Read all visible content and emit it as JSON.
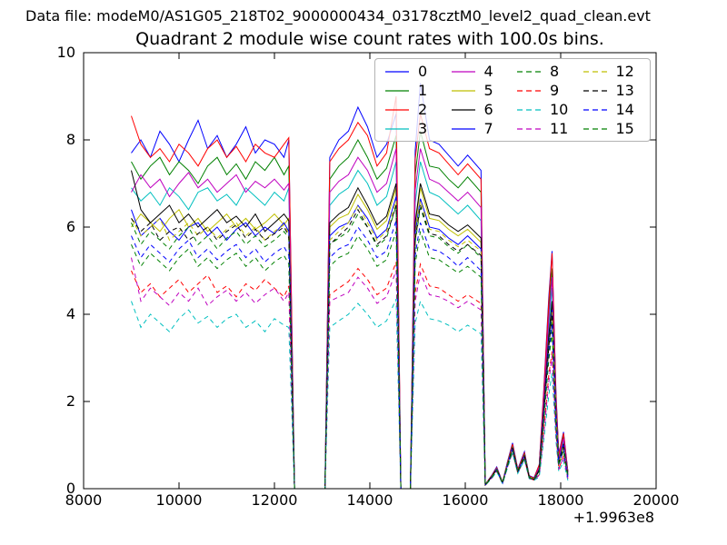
{
  "figure": {
    "data_file_label": "Data file: modeM0/AS1G05_218T02_9000000434_03178cztM0_level2_quad_clean.evt",
    "title": "Quadrant 2 module wise count rates with 100.0s bins."
  },
  "chart_data": {
    "type": "line",
    "title": "Quadrant 2 module wise count rates with 100.0s bins.",
    "xlabel": "",
    "ylabel": "",
    "xlim": [
      8000,
      20000
    ],
    "ylim": [
      0,
      10
    ],
    "x_ticks": [
      8000,
      10000,
      12000,
      14000,
      16000,
      18000,
      20000
    ],
    "y_ticks": [
      0,
      2,
      4,
      6,
      8,
      10
    ],
    "x_offset_label": "+1.9963e8",
    "grid": false,
    "legend_position": "upper right",
    "legend_columns": 4,
    "x": [
      9000,
      9200,
      9400,
      9600,
      9800,
      10000,
      10200,
      10400,
      10600,
      10800,
      11000,
      11200,
      11400,
      11600,
      11800,
      12000,
      12200,
      12300,
      12420,
      13060,
      13160,
      13350,
      13550,
      13750,
      13950,
      14150,
      14350,
      14550,
      14650,
      14850,
      14950,
      15060,
      15250,
      15450,
      15650,
      15850,
      16050,
      16330,
      16420,
      16550,
      16660,
      16780,
      16880,
      16990,
      17100,
      17240,
      17340,
      17440,
      17550,
      17650,
      17750,
      17820,
      17900,
      17960,
      18060,
      18150
    ],
    "series": [
      {
        "name": "0",
        "color": "#0000ff",
        "dashed": false,
        "values": [
          7.7,
          8.0,
          7.6,
          8.2,
          7.9,
          7.5,
          8.0,
          8.45,
          7.8,
          8.1,
          7.6,
          7.9,
          8.3,
          7.7,
          8.0,
          7.9,
          7.6,
          8.0,
          0,
          0,
          7.6,
          8.0,
          8.2,
          8.75,
          8.3,
          7.6,
          7.9,
          8.6,
          0,
          0,
          7.75,
          9.3,
          8.0,
          7.9,
          7.65,
          7.4,
          7.65,
          7.3,
          0.1,
          0.3,
          0.5,
          0.15,
          0.6,
          1.05,
          0.45,
          0.85,
          0.3,
          0.25,
          0.55,
          2.35,
          4.4,
          5.45,
          2.2,
          0.8,
          1.3,
          0.4
        ]
      },
      {
        "name": "1",
        "color": "#008000",
        "dashed": false,
        "values": [
          7.5,
          7.1,
          7.4,
          7.6,
          7.2,
          7.5,
          7.3,
          7.0,
          7.4,
          7.6,
          7.2,
          7.45,
          7.1,
          7.5,
          7.3,
          7.6,
          7.2,
          7.4,
          0,
          0,
          7.1,
          7.4,
          7.6,
          8.0,
          7.6,
          7.1,
          7.35,
          8.1,
          0,
          0,
          7.2,
          8.2,
          7.4,
          7.35,
          7.1,
          6.9,
          7.15,
          6.8,
          0.09,
          0.28,
          0.47,
          0.14,
          0.57,
          1.0,
          0.42,
          0.8,
          0.28,
          0.23,
          0.5,
          2.2,
          4.1,
          5.05,
          2.05,
          0.75,
          1.2,
          0.37
        ]
      },
      {
        "name": "2",
        "color": "#ff0000",
        "dashed": false,
        "values": [
          8.55,
          7.9,
          7.6,
          7.8,
          7.5,
          7.9,
          7.7,
          7.4,
          7.8,
          8.0,
          7.6,
          7.85,
          7.5,
          7.9,
          7.7,
          7.6,
          7.9,
          8.05,
          0,
          0,
          7.5,
          7.8,
          8.0,
          8.4,
          8.1,
          7.4,
          7.7,
          9.0,
          0,
          0,
          7.55,
          8.6,
          7.8,
          7.7,
          7.45,
          7.2,
          7.45,
          7.1,
          0.1,
          0.29,
          0.48,
          0.15,
          0.58,
          1.02,
          0.44,
          0.82,
          0.29,
          0.24,
          0.55,
          2.3,
          4.3,
          5.4,
          2.15,
          0.77,
          1.27,
          0.39
        ]
      },
      {
        "name": "3",
        "color": "#00bfbf",
        "dashed": false,
        "values": [
          6.9,
          6.6,
          6.8,
          6.5,
          6.9,
          6.7,
          6.4,
          6.8,
          6.9,
          6.6,
          6.75,
          6.5,
          6.9,
          6.7,
          6.5,
          6.8,
          6.6,
          6.9,
          0,
          0,
          6.5,
          6.75,
          6.9,
          7.3,
          7.0,
          6.5,
          6.7,
          7.5,
          0,
          0,
          6.55,
          7.5,
          6.8,
          6.7,
          6.5,
          6.3,
          6.5,
          6.15,
          0.09,
          0.27,
          0.45,
          0.14,
          0.54,
          0.95,
          0.4,
          0.77,
          0.27,
          0.22,
          0.47,
          2.0,
          3.75,
          4.6,
          1.9,
          0.67,
          1.1,
          0.34
        ]
      },
      {
        "name": "4",
        "color": "#bf00bf",
        "dashed": false,
        "values": [
          6.8,
          7.2,
          6.9,
          7.1,
          6.7,
          7.0,
          7.25,
          6.9,
          7.1,
          6.8,
          7.0,
          7.2,
          6.8,
          7.05,
          6.9,
          7.1,
          6.85,
          7.0,
          0,
          0,
          6.8,
          7.05,
          7.2,
          7.6,
          7.3,
          6.8,
          7.0,
          7.8,
          0,
          0,
          6.85,
          7.8,
          7.1,
          7.0,
          6.8,
          6.6,
          6.8,
          6.45,
          0.09,
          0.26,
          0.44,
          0.13,
          0.53,
          0.93,
          0.39,
          0.75,
          0.26,
          0.21,
          0.49,
          2.1,
          3.9,
          4.85,
          1.95,
          0.7,
          1.15,
          0.35
        ]
      },
      {
        "name": "5",
        "color": "#bfbf00",
        "dashed": false,
        "values": [
          6.0,
          6.3,
          6.1,
          5.9,
          6.2,
          6.4,
          6.0,
          6.2,
          5.9,
          6.1,
          6.3,
          6.0,
          6.2,
          5.95,
          6.1,
          6.3,
          6.05,
          6.2,
          0,
          0,
          6.0,
          6.2,
          6.3,
          6.75,
          6.4,
          5.95,
          6.15,
          6.9,
          0,
          0,
          6.0,
          6.9,
          6.2,
          6.15,
          5.95,
          5.8,
          5.95,
          5.65,
          0.09,
          0.27,
          0.46,
          0.14,
          0.55,
          0.96,
          0.41,
          0.78,
          0.27,
          0.22,
          0.43,
          1.85,
          3.45,
          4.25,
          1.7,
          0.62,
          1.0,
          0.31
        ]
      },
      {
        "name": "6",
        "color": "#000000",
        "dashed": false,
        "values": [
          7.3,
          6.4,
          6.1,
          6.3,
          6.5,
          6.1,
          6.3,
          6.0,
          6.2,
          6.4,
          6.1,
          6.25,
          6.0,
          6.3,
          5.9,
          6.1,
          6.3,
          6.15,
          0,
          0,
          6.1,
          6.3,
          6.45,
          6.9,
          6.5,
          6.05,
          6.25,
          7.0,
          0,
          0,
          6.1,
          7.0,
          6.3,
          6.25,
          6.05,
          5.9,
          6.05,
          5.75,
          0.09,
          0.27,
          0.45,
          0.14,
          0.54,
          0.95,
          0.4,
          0.77,
          0.27,
          0.22,
          0.44,
          1.9,
          3.5,
          4.3,
          1.75,
          0.63,
          1.03,
          0.31
        ]
      },
      {
        "name": "7",
        "color": "#0000ff",
        "dashed": false,
        "values": [
          6.4,
          5.8,
          6.0,
          6.2,
          5.9,
          5.7,
          6.0,
          6.1,
          5.8,
          6.0,
          5.7,
          5.95,
          6.1,
          5.8,
          6.0,
          5.85,
          6.1,
          5.9,
          0,
          0,
          5.8,
          6.0,
          6.1,
          6.5,
          6.2,
          5.75,
          5.95,
          6.7,
          0,
          0,
          5.85,
          6.65,
          6.0,
          5.95,
          5.75,
          5.6,
          5.8,
          5.5,
          0.09,
          0.26,
          0.45,
          0.13,
          0.54,
          0.94,
          0.4,
          0.76,
          0.27,
          0.21,
          0.42,
          1.8,
          3.3,
          4.1,
          1.65,
          0.6,
          1.0,
          0.3
        ]
      },
      {
        "name": "8",
        "color": "#008000",
        "dashed": true,
        "values": [
          6.1,
          5.6,
          5.9,
          5.7,
          5.5,
          5.8,
          6.0,
          5.6,
          5.8,
          5.5,
          5.75,
          5.9,
          5.6,
          5.8,
          5.55,
          5.7,
          5.9,
          5.75,
          0,
          0,
          5.6,
          5.75,
          5.9,
          6.3,
          6.0,
          5.55,
          5.75,
          6.5,
          0,
          0,
          5.65,
          6.45,
          5.8,
          5.75,
          5.55,
          5.4,
          5.6,
          5.3,
          0.09,
          0.26,
          0.43,
          0.13,
          0.51,
          0.89,
          0.38,
          0.72,
          0.26,
          0.21,
          0.4,
          1.7,
          3.2,
          3.95,
          1.6,
          0.58,
          0.95,
          0.29
        ]
      },
      {
        "name": "9",
        "color": "#ff0000",
        "dashed": true,
        "values": [
          5.0,
          4.5,
          4.7,
          4.4,
          4.6,
          4.8,
          4.5,
          4.7,
          4.9,
          4.5,
          4.65,
          4.4,
          4.7,
          4.55,
          4.8,
          4.6,
          4.4,
          4.65,
          0,
          0,
          4.45,
          4.6,
          4.75,
          5.05,
          4.8,
          4.45,
          4.6,
          5.2,
          0,
          0,
          4.5,
          5.15,
          4.65,
          4.6,
          4.45,
          4.3,
          4.45,
          4.25,
          0.08,
          0.24,
          0.4,
          0.12,
          0.48,
          0.84,
          0.36,
          0.68,
          0.24,
          0.2,
          0.32,
          1.4,
          2.6,
          3.15,
          1.3,
          0.46,
          0.76,
          0.23
        ]
      },
      {
        "name": "10",
        "color": "#00bfbf",
        "dashed": true,
        "values": [
          4.3,
          3.7,
          4.0,
          3.8,
          3.6,
          3.9,
          4.1,
          3.8,
          3.95,
          3.7,
          3.9,
          4.0,
          3.7,
          3.85,
          3.6,
          3.9,
          3.75,
          3.7,
          0,
          0,
          3.7,
          3.85,
          4.0,
          4.25,
          4.0,
          3.7,
          3.85,
          4.35,
          0,
          0,
          3.8,
          4.3,
          3.9,
          3.85,
          3.75,
          3.6,
          3.75,
          3.55,
          0.08,
          0.23,
          0.39,
          0.11,
          0.46,
          0.82,
          0.35,
          0.66,
          0.23,
          0.19,
          0.27,
          1.15,
          2.15,
          2.65,
          1.1,
          0.39,
          0.64,
          0.19
        ]
      },
      {
        "name": "11",
        "color": "#bf00bf",
        "dashed": true,
        "values": [
          5.3,
          4.3,
          4.6,
          4.4,
          4.2,
          4.5,
          4.3,
          4.6,
          4.2,
          4.4,
          4.55,
          4.3,
          4.5,
          4.25,
          4.45,
          4.6,
          4.3,
          4.5,
          0,
          0,
          4.3,
          4.4,
          4.5,
          4.85,
          4.6,
          4.25,
          4.4,
          5.0,
          0,
          0,
          4.3,
          4.95,
          4.45,
          4.4,
          4.3,
          4.15,
          4.3,
          4.1,
          0.08,
          0.24,
          0.41,
          0.12,
          0.49,
          0.85,
          0.36,
          0.69,
          0.24,
          0.2,
          0.31,
          1.3,
          2.45,
          3.05,
          1.25,
          0.44,
          0.73,
          0.22
        ]
      },
      {
        "name": "12",
        "color": "#bfbf00",
        "dashed": true,
        "values": [
          6.2,
          5.8,
          6.0,
          6.2,
          5.7,
          5.9,
          6.1,
          5.8,
          6.0,
          5.75,
          5.95,
          6.1,
          5.8,
          6.0,
          5.7,
          5.9,
          6.05,
          5.85,
          0,
          0,
          5.7,
          5.9,
          6.1,
          6.5,
          6.1,
          5.7,
          5.9,
          6.6,
          0,
          0,
          5.8,
          6.6,
          5.95,
          5.9,
          5.7,
          5.55,
          5.7,
          5.45,
          0.09,
          0.27,
          0.44,
          0.14,
          0.54,
          0.94,
          0.4,
          0.76,
          0.27,
          0.22,
          0.41,
          1.75,
          3.3,
          4.05,
          1.65,
          0.59,
          0.97,
          0.3
        ]
      },
      {
        "name": "13",
        "color": "#000000",
        "dashed": true,
        "values": [
          6.2,
          5.9,
          6.1,
          5.7,
          5.9,
          6.0,
          5.7,
          5.85,
          6.0,
          5.7,
          5.9,
          6.05,
          5.75,
          5.95,
          5.7,
          5.85,
          6.0,
          5.8,
          0,
          0,
          5.6,
          5.8,
          6.0,
          6.4,
          6.0,
          5.6,
          5.8,
          6.5,
          0,
          0,
          5.7,
          6.5,
          5.85,
          5.8,
          5.6,
          5.45,
          5.6,
          5.35,
          0.09,
          0.27,
          0.45,
          0.13,
          0.53,
          0.93,
          0.4,
          0.75,
          0.26,
          0.21,
          0.41,
          1.75,
          3.25,
          4.0,
          1.6,
          0.58,
          0.96,
          0.29
        ]
      },
      {
        "name": "14",
        "color": "#0000ff",
        "dashed": true,
        "values": [
          5.8,
          5.3,
          5.6,
          5.4,
          5.2,
          5.5,
          5.7,
          5.3,
          5.5,
          5.25,
          5.45,
          5.6,
          5.3,
          5.5,
          5.2,
          5.4,
          5.55,
          5.35,
          0,
          0,
          5.3,
          5.5,
          5.6,
          6.0,
          5.7,
          5.3,
          5.45,
          6.15,
          0,
          0,
          5.35,
          6.1,
          5.5,
          5.45,
          5.3,
          5.1,
          5.3,
          5.0,
          0.08,
          0.25,
          0.42,
          0.13,
          0.5,
          0.87,
          0.37,
          0.7,
          0.25,
          0.2,
          0.38,
          1.65,
          3.05,
          3.75,
          1.55,
          0.55,
          0.9,
          0.27
        ]
      },
      {
        "name": "15",
        "color": "#008000",
        "dashed": true,
        "values": [
          5.6,
          5.1,
          5.4,
          5.2,
          5.0,
          5.3,
          5.5,
          5.1,
          5.3,
          5.05,
          5.25,
          5.4,
          5.1,
          5.3,
          5.0,
          5.2,
          5.35,
          5.15,
          0,
          0,
          5.1,
          5.3,
          5.4,
          5.8,
          5.5,
          5.1,
          5.25,
          5.9,
          0,
          0,
          5.15,
          5.9,
          5.3,
          5.25,
          5.1,
          4.95,
          5.1,
          4.85,
          0.08,
          0.25,
          0.42,
          0.13,
          0.51,
          0.87,
          0.37,
          0.71,
          0.25,
          0.2,
          0.37,
          1.6,
          2.95,
          3.6,
          1.45,
          0.53,
          0.87,
          0.26
        ]
      }
    ]
  }
}
